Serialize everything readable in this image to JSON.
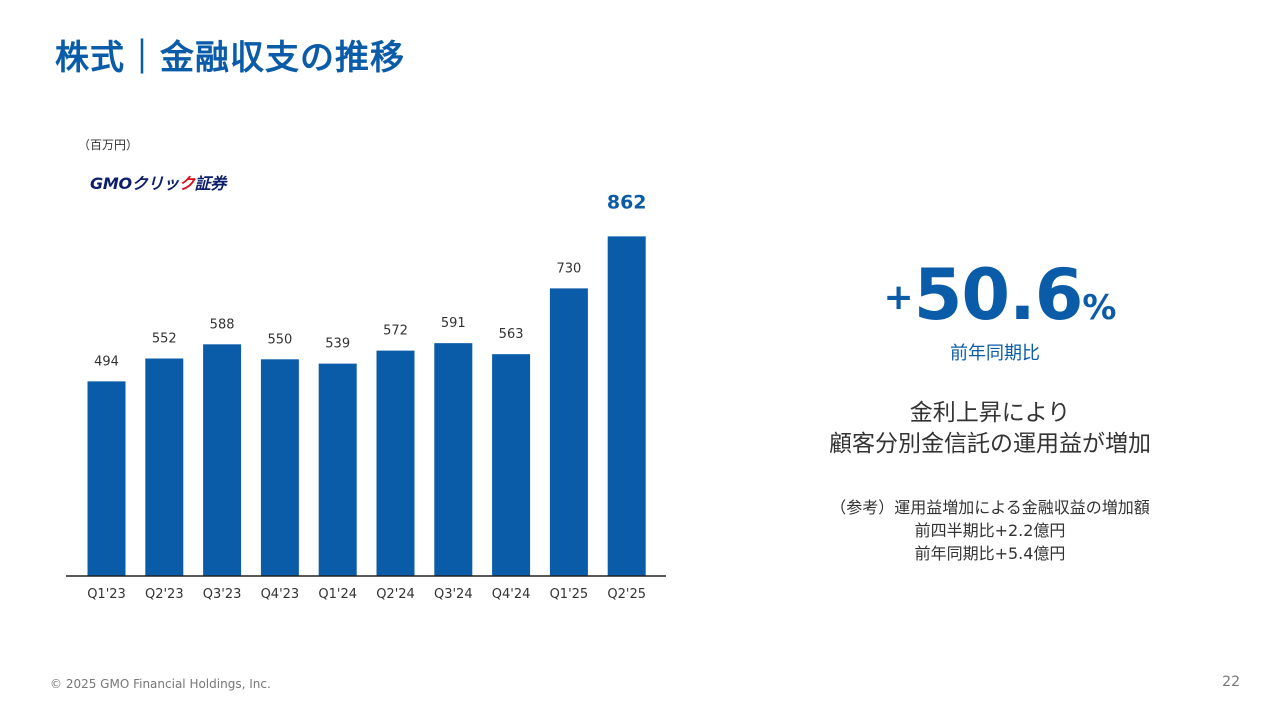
{
  "header": {
    "title": "株式｜金融収支の推移"
  },
  "unit_label": "（百万円）",
  "logo": {
    "text_main": "GMOクリッ",
    "text_accent": "ク",
    "text_end": "証券"
  },
  "chart_data": {
    "type": "bar",
    "categories": [
      "Q1'23",
      "Q2'23",
      "Q3'23",
      "Q4'23",
      "Q1'24",
      "Q2'24",
      "Q3'24",
      "Q4'24",
      "Q1'25",
      "Q2'25"
    ],
    "values": [
      494,
      552,
      588,
      550,
      539,
      572,
      591,
      563,
      730,
      862
    ],
    "highlight_index": 9,
    "bar_color": "#0a5ca8",
    "ylim": [
      0,
      900
    ],
    "grid": false,
    "title": "",
    "xlabel": "",
    "ylabel": ""
  },
  "kpi": {
    "sign": "+",
    "value": "50.6",
    "unit": "%",
    "label": "前年同期比"
  },
  "message": {
    "line1": "金利上昇により",
    "line2": "顧客分別金信託の運用益が増加"
  },
  "note": {
    "line1": "（参考）運用益増加による金融収益の増加額",
    "line2": "前四半期比+2.2億円",
    "line3": "前年同期比+5.4億円"
  },
  "footer": {
    "copyright": "© 2025 GMO Financial Holdings, Inc.",
    "page_number": "22"
  }
}
